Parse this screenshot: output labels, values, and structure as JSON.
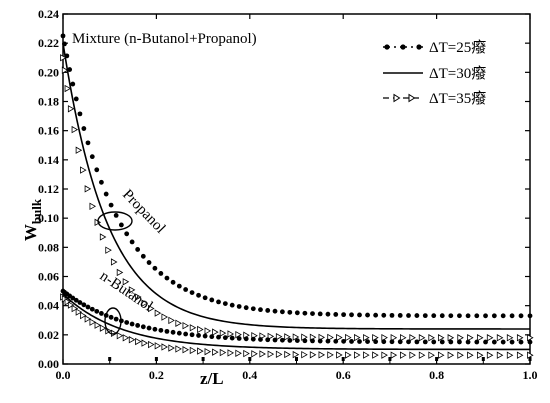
{
  "chart_data": {
    "type": "scatter",
    "title": "Mixture (n-Butanol+Propanol)",
    "xlabel": "z/L",
    "ylabel_main": "W",
    "ylabel_sub": "bulk",
    "xlim": [
      0.0,
      1.0
    ],
    "ylim": [
      0.0,
      0.24
    ],
    "x_ticks": [
      "0.0",
      "0.2",
      "0.4",
      "0.6",
      "0.8",
      "1.0"
    ],
    "y_ticks": [
      "0.00",
      "0.02",
      "0.04",
      "0.06",
      "0.08",
      "0.10",
      "0.12",
      "0.14",
      "0.16",
      "0.18",
      "0.20",
      "0.22",
      "0.24"
    ],
    "grid": false,
    "legend_position": "top-right",
    "legend": [
      {
        "label": "ΔT=25癈",
        "style": "dash-dot-filled-circle"
      },
      {
        "label": "ΔT=30癈",
        "style": "solid-line"
      },
      {
        "label": "ΔT=35癈",
        "style": "dash-open-triangle"
      }
    ],
    "annotations": {
      "propanol": "Propanol",
      "butanol": "n-Butanol"
    },
    "series": [
      {
        "name": "ΔT=25癈",
        "group": "Propanol",
        "marker": "filled-circle",
        "ends": [
          0.225,
          0.033
        ],
        "k": 9.0
      },
      {
        "name": "ΔT=30癈",
        "group": "Propanol",
        "marker": "line",
        "ends": [
          0.22,
          0.024
        ],
        "k": 10.5
      },
      {
        "name": "ΔT=35癈",
        "group": "Propanol",
        "marker": "open-triangle",
        "ends": [
          0.21,
          0.018
        ],
        "k": 12.0
      },
      {
        "name": "ΔT=25癈",
        "group": "n-Butanol",
        "marker": "filled-circle",
        "ends": [
          0.05,
          0.015
        ],
        "k": 7.0
      },
      {
        "name": "ΔT=30癈",
        "group": "n-Butanol",
        "marker": "line",
        "ends": [
          0.048,
          0.01
        ],
        "k": 8.0
      },
      {
        "name": "ΔT=35癈",
        "group": "n-Butanol",
        "marker": "open-triangle",
        "ends": [
          0.046,
          0.006
        ],
        "k": 9.0
      }
    ],
    "bottom_marks_x": [
      0.1,
      0.2,
      0.3,
      0.4,
      0.5,
      0.6,
      0.7,
      0.8,
      0.9,
      1.0
    ]
  }
}
